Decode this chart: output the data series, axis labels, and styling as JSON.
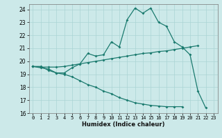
{
  "title": "",
  "xlabel": "Humidex (Indice chaleur)",
  "xlim": [
    -0.5,
    23.5
  ],
  "ylim": [
    16,
    24.4
  ],
  "xticks": [
    0,
    1,
    2,
    3,
    4,
    5,
    6,
    7,
    8,
    9,
    10,
    11,
    12,
    13,
    14,
    15,
    16,
    17,
    18,
    19,
    20,
    21,
    22,
    23
  ],
  "yticks": [
    16,
    17,
    18,
    19,
    20,
    21,
    22,
    23,
    24
  ],
  "background_color": "#cce9e9",
  "grid_color": "#aad4d4",
  "line_color": "#1a7a6e",
  "line1_x": [
    0,
    1,
    2,
    3,
    4,
    5,
    6,
    7,
    8,
    9,
    10,
    11,
    12,
    13,
    14,
    15,
    16,
    17,
    18,
    19,
    20,
    21,
    22
  ],
  "line1_y": [
    19.6,
    19.6,
    19.3,
    19.1,
    19.1,
    19.5,
    19.8,
    20.6,
    20.4,
    20.5,
    21.5,
    21.1,
    23.2,
    24.1,
    23.7,
    24.1,
    23.0,
    22.7,
    21.5,
    21.1,
    20.5,
    17.7,
    16.4
  ],
  "line2_x": [
    0,
    1,
    2,
    3,
    4,
    5,
    6,
    7,
    8,
    9,
    10,
    11,
    12,
    13,
    14,
    15,
    16,
    17,
    18,
    19,
    20,
    21
  ],
  "line2_y": [
    19.6,
    19.55,
    19.55,
    19.55,
    19.6,
    19.7,
    19.8,
    19.9,
    20.0,
    20.1,
    20.2,
    20.3,
    20.4,
    20.5,
    20.6,
    20.65,
    20.75,
    20.8,
    20.9,
    21.0,
    21.1,
    21.2
  ],
  "line3_x": [
    0,
    1,
    2,
    3,
    4,
    5,
    6,
    7,
    8,
    9,
    10,
    11,
    12,
    13,
    14,
    15,
    16,
    17,
    18,
    19
  ],
  "line3_y": [
    19.6,
    19.5,
    19.4,
    19.1,
    19.0,
    18.8,
    18.5,
    18.2,
    18.0,
    17.7,
    17.5,
    17.2,
    17.0,
    16.8,
    16.7,
    16.6,
    16.55,
    16.5,
    16.5,
    16.5
  ]
}
